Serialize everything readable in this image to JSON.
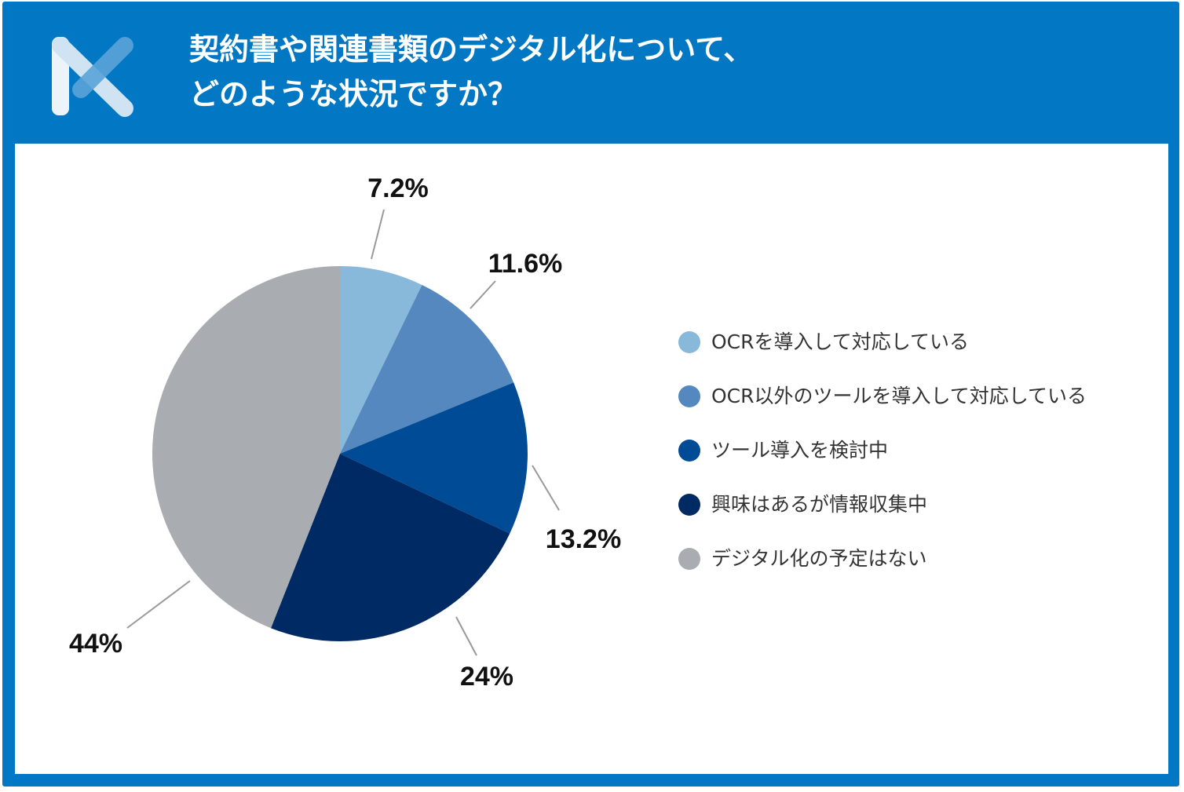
{
  "header": {
    "title_line1": "契約書や関連書類のデジタル化について、",
    "title_line2": "どのような状況ですか？",
    "logo_icon": "brand-x-logo-icon",
    "background": "#0277c4"
  },
  "chart_data": {
    "type": "pie",
    "start_angle_deg": 0,
    "direction": "clockwise",
    "slices": [
      {
        "label": "OCRを導入して対応している",
        "value": 7.2,
        "display": "7.2%",
        "color": "#88b8da"
      },
      {
        "label": "OCR以外のツールを導入して対応している",
        "value": 11.6,
        "display": "11.6%",
        "color": "#5488be"
      },
      {
        "label": "ツール導入を検討中",
        "value": 13.2,
        "display": "13.2%",
        "color": "#004b95"
      },
      {
        "label": "興味はあるが情報収集中",
        "value": 24,
        "display": "24%",
        "color": "#002a63"
      },
      {
        "label": "デジタル化の予定はない",
        "value": 44,
        "display": "44%",
        "color": "#a9acb0"
      }
    ],
    "legend_position": "right"
  }
}
